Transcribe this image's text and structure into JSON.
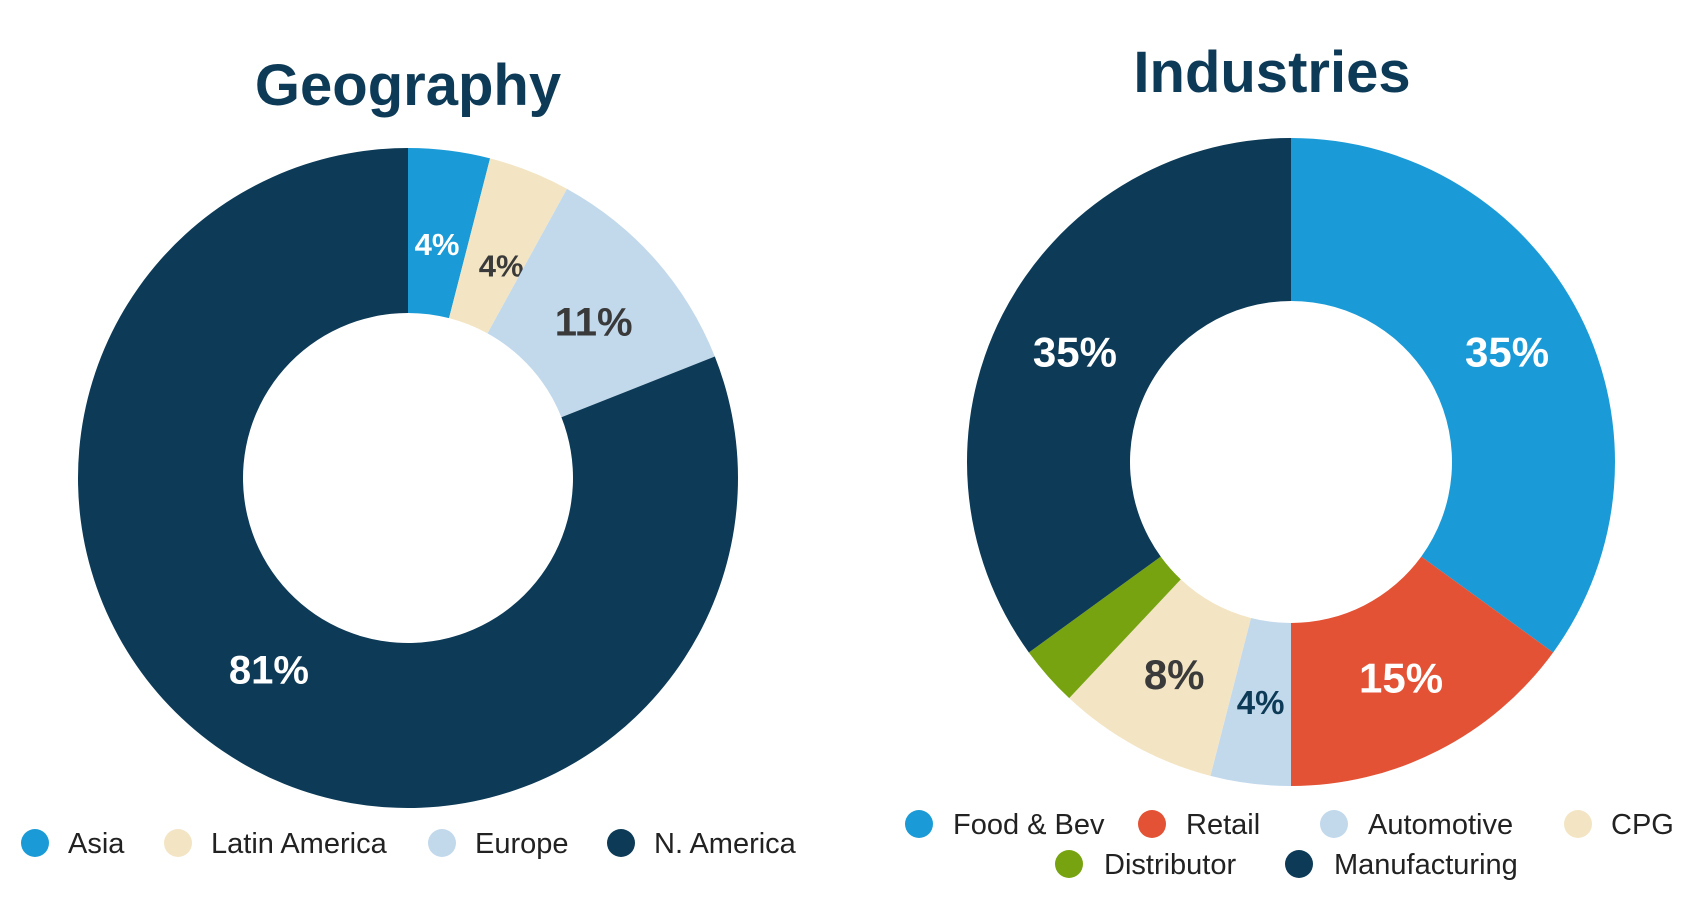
{
  "chart_data": [
    {
      "type": "pie",
      "title": "Geography",
      "series": [
        {
          "name": "Asia",
          "value": 4,
          "label": "4%",
          "color": "#1a9bd7",
          "label_color": "#ffffff"
        },
        {
          "name": "Latin America",
          "value": 4,
          "label": "4%",
          "color": "#f3e5c4",
          "label_color": "#3a3a3a"
        },
        {
          "name": "Europe",
          "value": 11,
          "label": "11%",
          "color": "#c2d9ec",
          "label_color": "#3a3a3a"
        },
        {
          "name": "N. America",
          "value": 81,
          "label": "81%",
          "color": "#0c3a57",
          "label_color": "#ffffff"
        }
      ],
      "legend_position": "bottom"
    },
    {
      "type": "pie",
      "title": "Industries",
      "series": [
        {
          "name": "Food & Bev",
          "value": 35,
          "label": "35%",
          "color": "#1a9bd7",
          "label_color": "#ffffff"
        },
        {
          "name": "Retail",
          "value": 15,
          "label": "15%",
          "color": "#e35235",
          "label_color": "#ffffff"
        },
        {
          "name": "Automotive",
          "value": 4,
          "label": "4%",
          "color": "#c2d9ec",
          "label_color": "#0c3a57"
        },
        {
          "name": "CPG",
          "value": 8,
          "label": "8%",
          "color": "#f3e5c4",
          "label_color": "#3a3a3a"
        },
        {
          "name": "Distributor",
          "value": 3,
          "label": "",
          "color": "#76a30f",
          "label_color": "#ffffff"
        },
        {
          "name": "Manufacturing",
          "value": 35,
          "label": "35%",
          "color": "#0c3a57",
          "label_color": "#ffffff"
        }
      ],
      "legend_position": "bottom"
    }
  ]
}
